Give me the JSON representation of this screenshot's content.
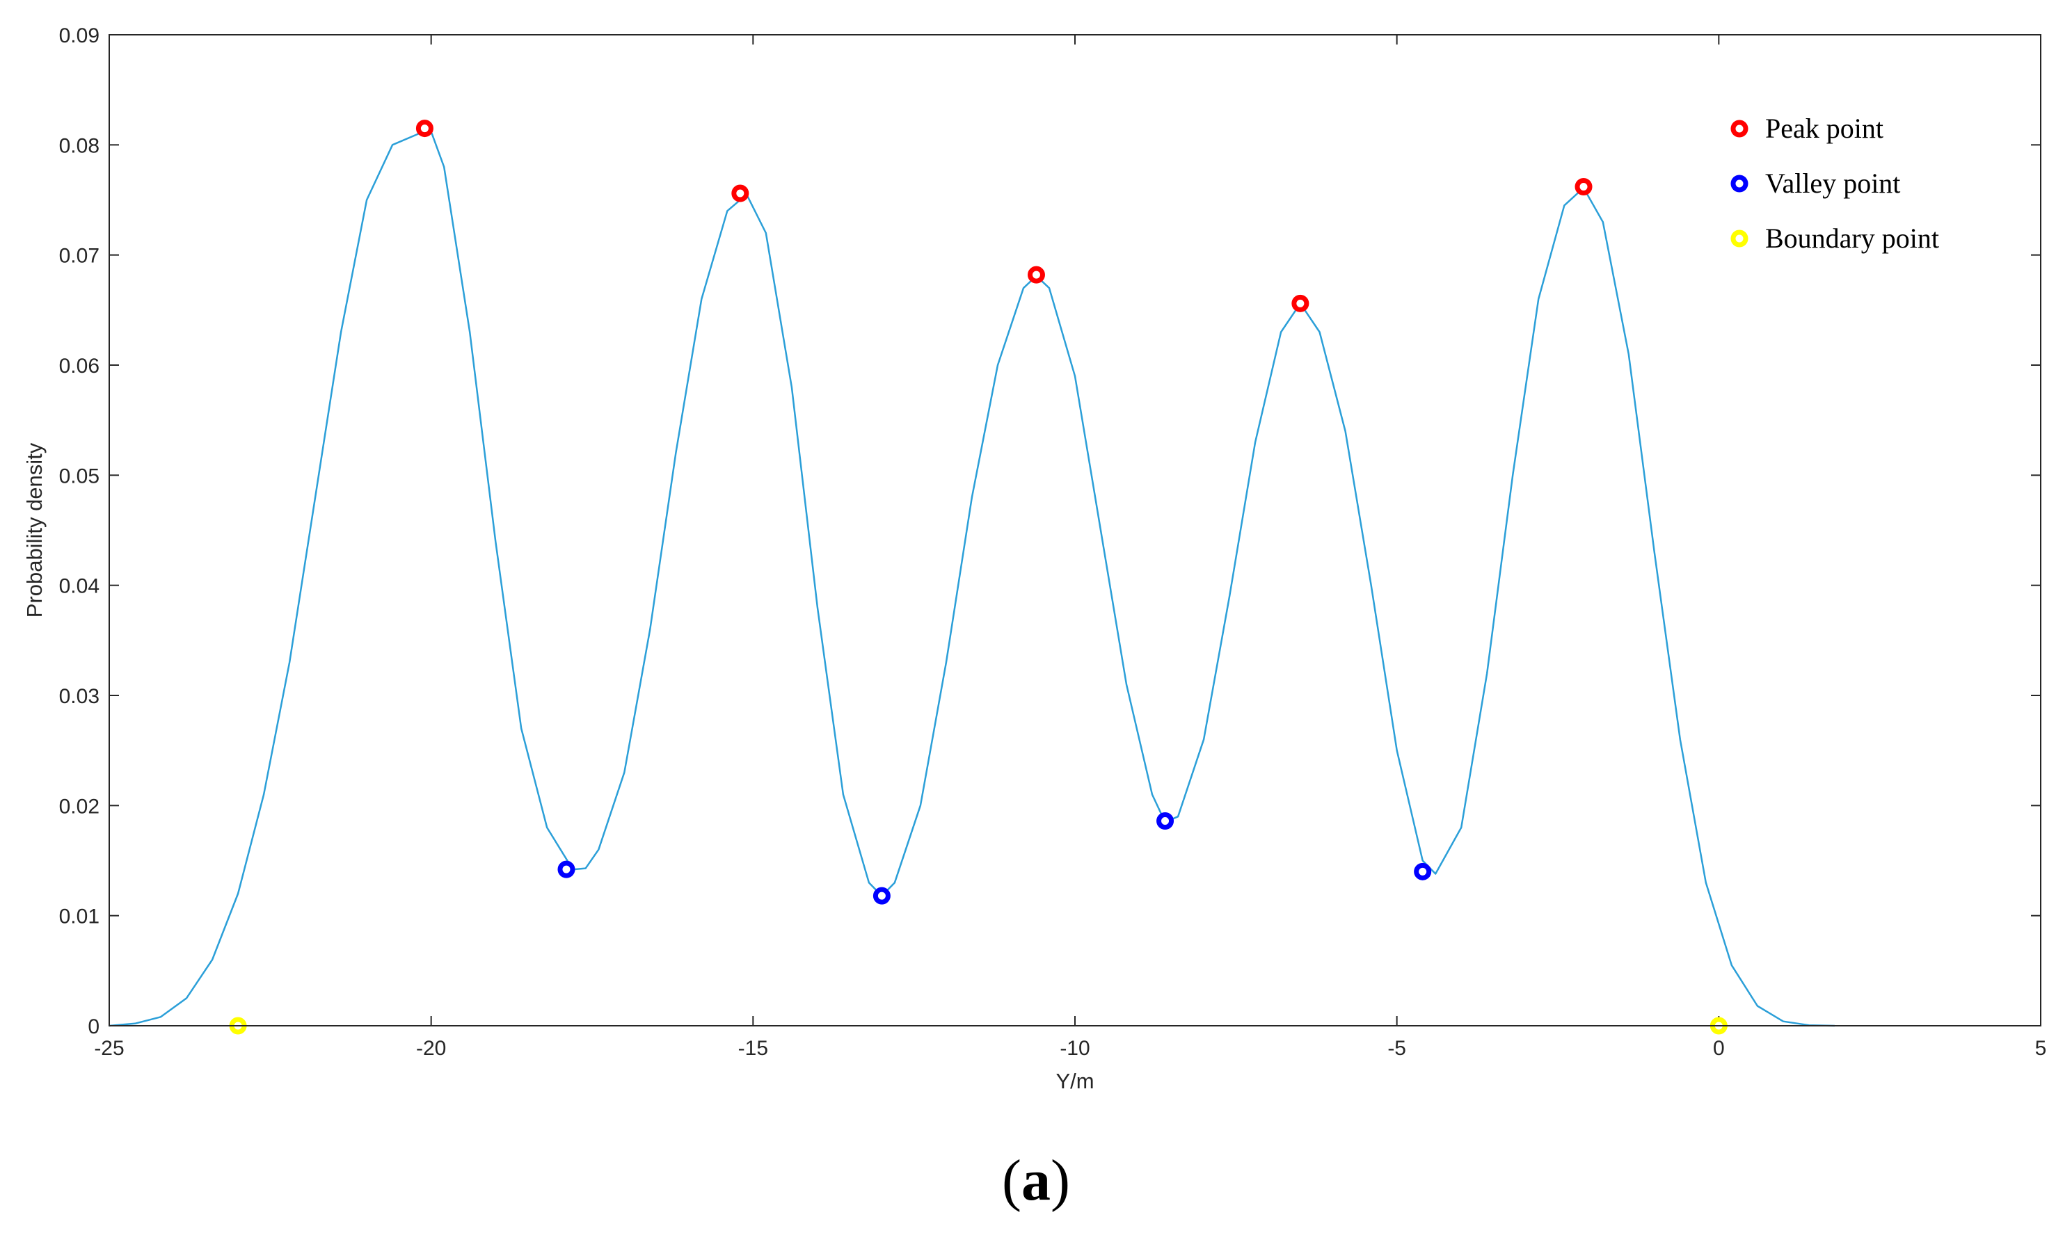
{
  "chart_data": {
    "type": "line",
    "xlabel": "Y/m",
    "ylabel": "Probability density",
    "xlim": [
      -25,
      5
    ],
    "ylim": [
      0,
      0.09
    ],
    "x_ticks": [
      -25,
      -20,
      -15,
      -10,
      -5,
      0,
      5
    ],
    "x_tick_labels": [
      "-25",
      "-20",
      "-15",
      "-10",
      "-5",
      "0",
      "5"
    ],
    "y_ticks": [
      0,
      0.01,
      0.02,
      0.03,
      0.04,
      0.05,
      0.06,
      0.07,
      0.08,
      0.09
    ],
    "y_tick_labels": [
      "0",
      "0.01",
      "0.02",
      "0.03",
      "0.04",
      "0.05",
      "0.06",
      "0.07",
      "0.08",
      "0.09"
    ],
    "grid": false,
    "legend_position": "top-right",
    "curve": {
      "color": "#2b9fd8",
      "x": [
        -25,
        -24.6,
        -24.2,
        -23.8,
        -23.4,
        -23.0,
        -22.6,
        -22.2,
        -21.8,
        -21.4,
        -21.0,
        -20.6,
        -20.2,
        -20.0,
        -19.8,
        -19.4,
        -19.0,
        -18.6,
        -18.2,
        -17.8,
        -17.6,
        -17.4,
        -17.0,
        -16.6,
        -16.2,
        -15.8,
        -15.4,
        -15.1,
        -14.8,
        -14.4,
        -14.0,
        -13.6,
        -13.2,
        -13.0,
        -12.8,
        -12.4,
        -12.0,
        -11.6,
        -11.2,
        -10.8,
        -10.6,
        -10.4,
        -10.0,
        -9.6,
        -9.2,
        -8.8,
        -8.6,
        -8.4,
        -8.0,
        -7.6,
        -7.2,
        -6.8,
        -6.5,
        -6.2,
        -5.8,
        -5.4,
        -5.0,
        -4.6,
        -4.4,
        -4.0,
        -3.6,
        -3.2,
        -2.8,
        -2.4,
        -2.1,
        -1.8,
        -1.4,
        -1.0,
        -0.6,
        -0.2,
        0.2,
        0.6,
        1.0,
        1.4,
        1.8
      ],
      "y": [
        0,
        0.0002,
        0.0008,
        0.0025,
        0.006,
        0.012,
        0.021,
        0.033,
        0.048,
        0.063,
        0.075,
        0.08,
        0.081,
        0.0812,
        0.078,
        0.063,
        0.044,
        0.027,
        0.018,
        0.0142,
        0.0143,
        0.016,
        0.023,
        0.036,
        0.052,
        0.066,
        0.074,
        0.0755,
        0.072,
        0.058,
        0.038,
        0.021,
        0.013,
        0.0118,
        0.013,
        0.02,
        0.033,
        0.048,
        0.06,
        0.067,
        0.0681,
        0.067,
        0.059,
        0.045,
        0.031,
        0.021,
        0.0185,
        0.019,
        0.026,
        0.039,
        0.053,
        0.063,
        0.0656,
        0.063,
        0.054,
        0.04,
        0.025,
        0.015,
        0.0138,
        0.018,
        0.032,
        0.05,
        0.066,
        0.0745,
        0.0761,
        0.073,
        0.061,
        0.043,
        0.026,
        0.013,
        0.0055,
        0.0018,
        0.0004,
        5e-05,
        0
      ]
    },
    "series": [
      {
        "name": "Peak point",
        "color": "#ff0000",
        "x": [
          -20.1,
          -15.2,
          -10.6,
          -6.5,
          -2.1
        ],
        "y": [
          0.0815,
          0.0756,
          0.0682,
          0.0656,
          0.0762
        ]
      },
      {
        "name": "Valley point",
        "color": "#0000ff",
        "x": [
          -17.9,
          -13.0,
          -8.6,
          -4.6
        ],
        "y": [
          0.0142,
          0.0118,
          0.0186,
          0.014
        ]
      },
      {
        "name": "Boundary point",
        "color": "#ffff00",
        "x": [
          -23.0,
          0.0
        ],
        "y": [
          0,
          0
        ]
      }
    ]
  },
  "caption": {
    "open": "(",
    "letter": "a",
    "close": ")"
  }
}
